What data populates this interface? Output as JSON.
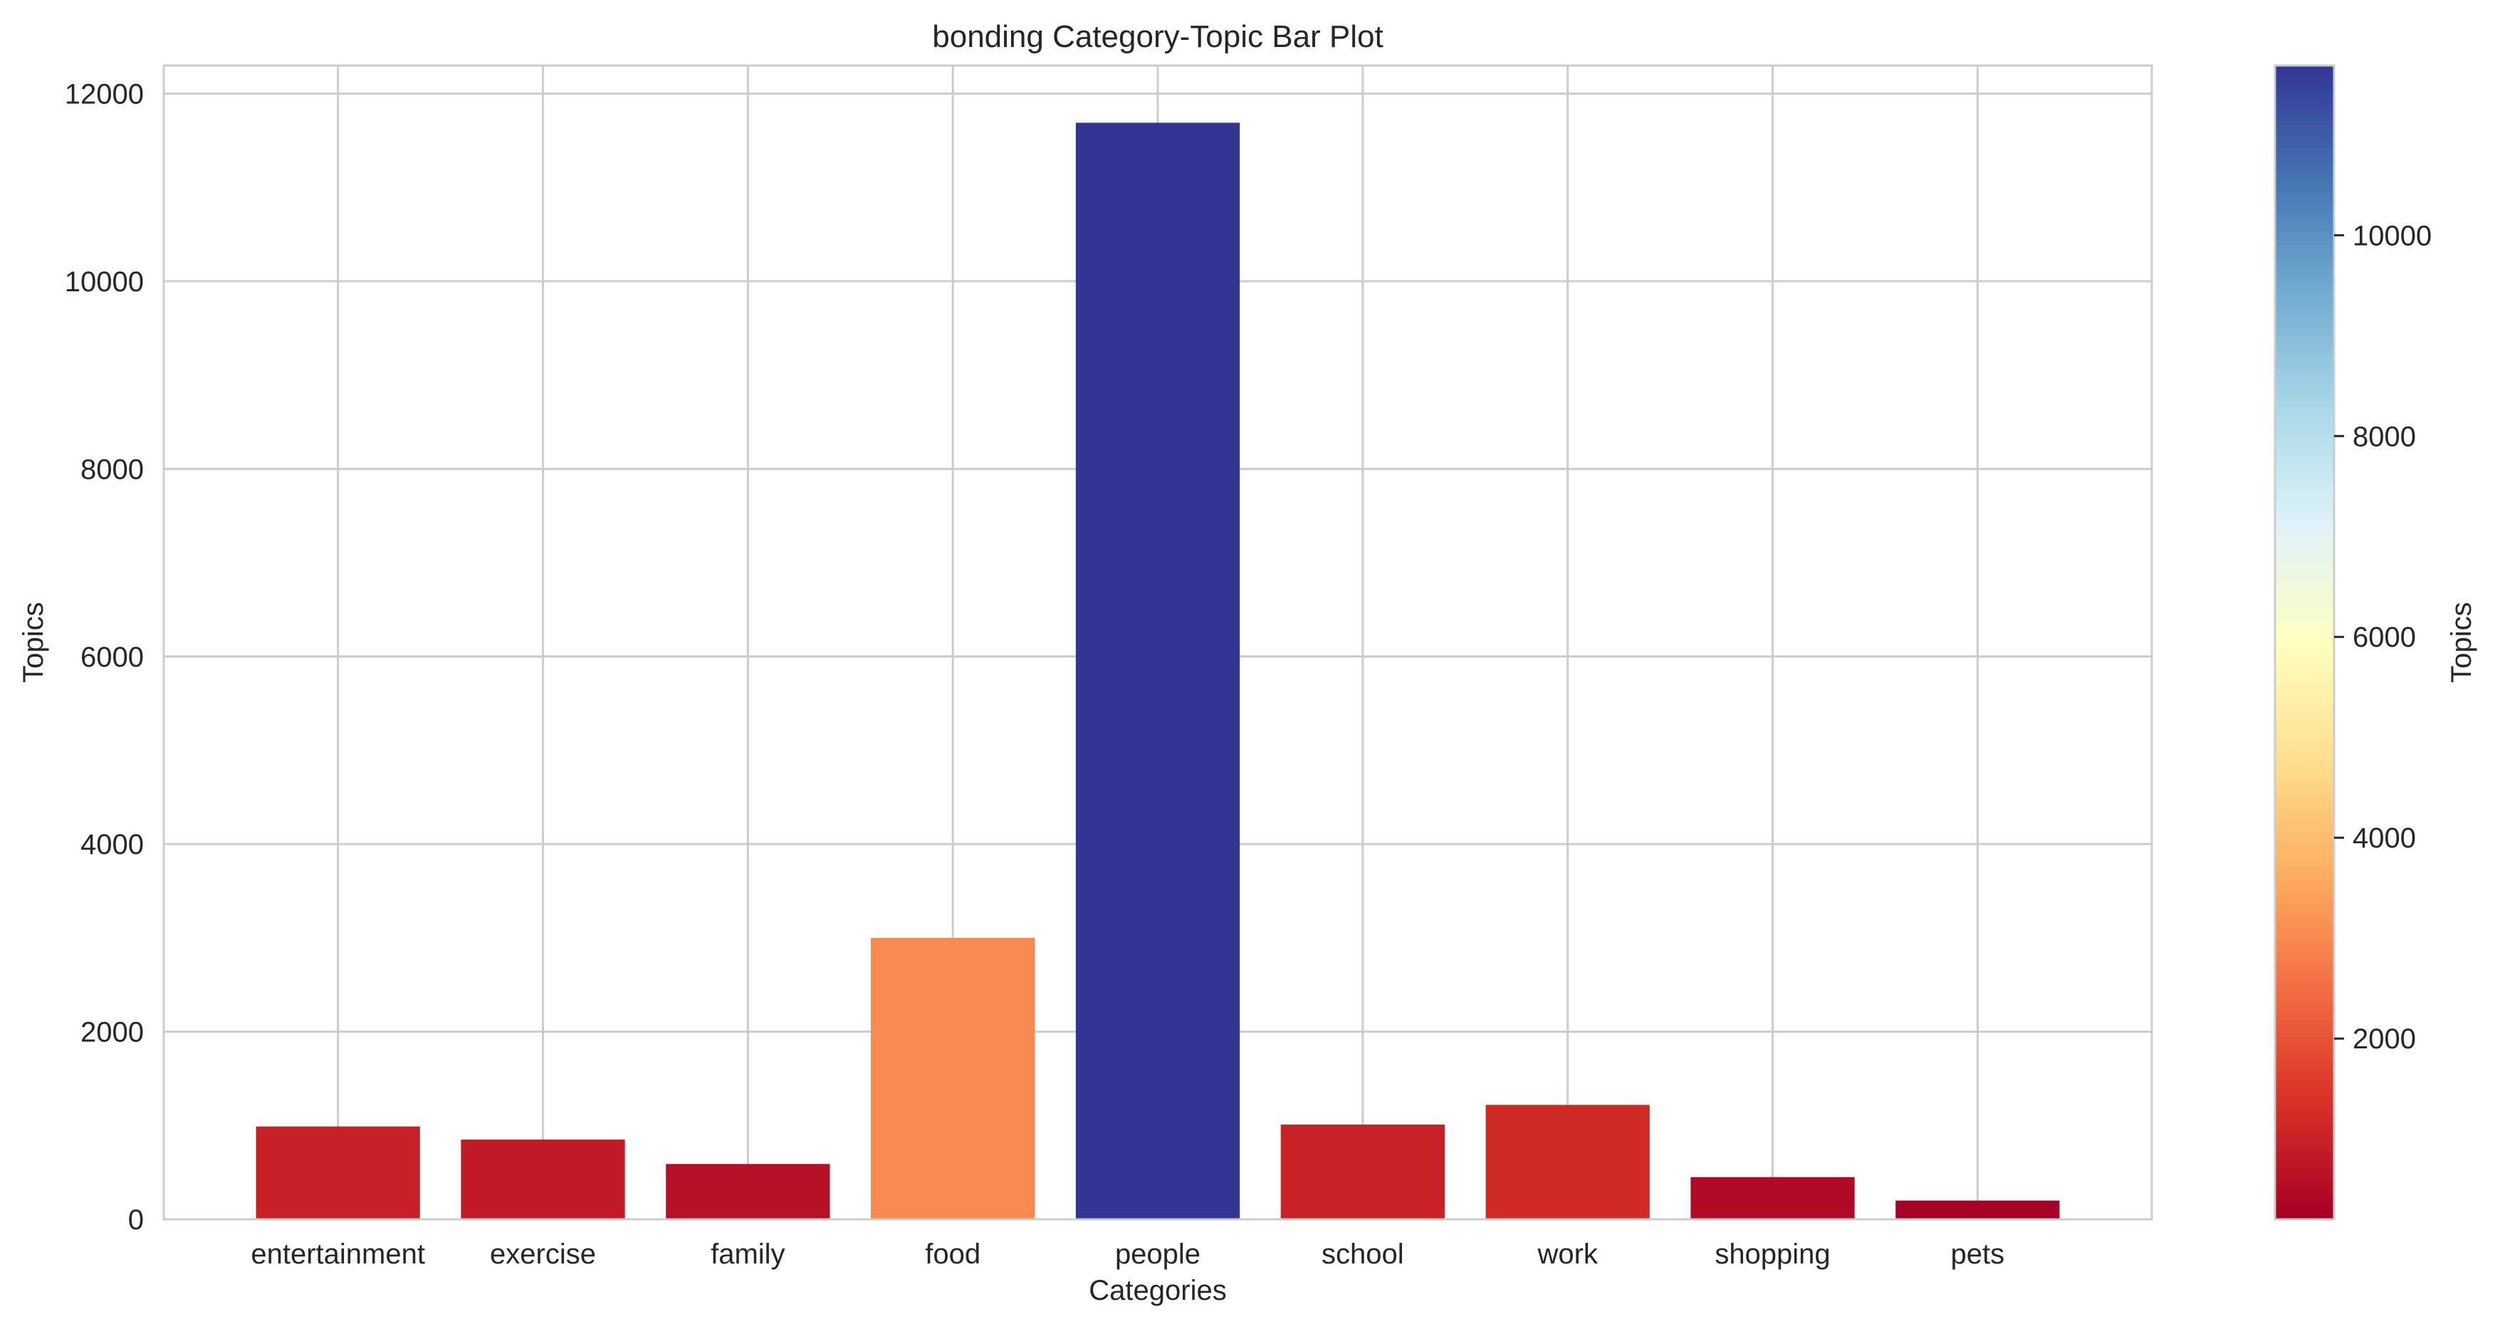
{
  "chart_data": {
    "type": "bar",
    "title": "bonding Category-Topic Bar Plot",
    "xlabel": "Categories",
    "ylabel": "Topics",
    "categories": [
      "entertainment",
      "exercise",
      "family",
      "food",
      "people",
      "school",
      "work",
      "shopping",
      "pets"
    ],
    "values": [
      990,
      850,
      590,
      3000,
      11690,
      1010,
      1220,
      450,
      200
    ],
    "ylim": [
      0,
      12300
    ],
    "yticks": [
      0,
      2000,
      4000,
      6000,
      8000,
      10000,
      12000
    ],
    "grid": true,
    "colormap": "RdYlBu",
    "colorbar": {
      "label": "Topics",
      "range": [
        200,
        11690
      ],
      "ticks": [
        2000,
        4000,
        6000,
        8000,
        10000
      ]
    }
  }
}
